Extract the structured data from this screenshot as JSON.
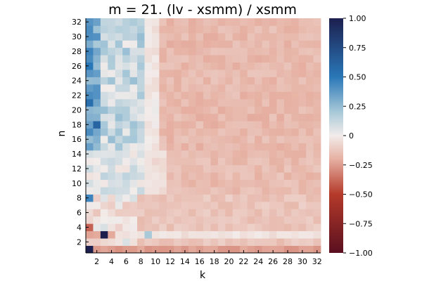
{
  "chart_data": {
    "type": "heatmap",
    "title": "m = 21. (lv - xsmm) / xsmm",
    "xlabel": "k",
    "ylabel": "n",
    "x_range": [
      1,
      32
    ],
    "y_range": [
      1,
      32
    ],
    "x_ticks": [
      "2",
      "4",
      "6",
      "8",
      "10",
      "12",
      "14",
      "16",
      "18",
      "20",
      "22",
      "24",
      "26",
      "28",
      "30",
      "32"
    ],
    "y_ticks": [
      "2",
      "4",
      "6",
      "8",
      "10",
      "12",
      "14",
      "16",
      "18",
      "20",
      "22",
      "24",
      "26",
      "28",
      "30",
      "32"
    ],
    "colorbar": {
      "range": [
        -1.0,
        1.0
      ],
      "ticks": [
        "1.00",
        "0.75",
        "0.50",
        "0.25",
        "0",
        "−0.25",
        "−0.50",
        "−0.75",
        "−1.00"
      ]
    },
    "colors": {
      "neg_dark": "#5a0f1f",
      "neg_mid": "#b43a2a",
      "neg_light": "#e6b0a2",
      "zero": "#f2ecea",
      "pos_light": "#a9c9d8",
      "pos_mid": "#2a77b8",
      "pos_dark": "#1c1f4e"
    },
    "notable_cells": [
      {
        "k": 1,
        "n": 1,
        "value": 1.0
      },
      {
        "k": 3,
        "n": 3,
        "value": 1.0
      },
      {
        "k": 2,
        "n": 18,
        "value": 0.6
      },
      {
        "k": 1,
        "n": 21,
        "value": 0.55
      },
      {
        "k": 1,
        "n": 26,
        "value": 0.5
      },
      {
        "k": 1,
        "n": 28,
        "value": 0.45
      },
      {
        "k": 1,
        "n": 8,
        "value": 0.45
      },
      {
        "k": 1,
        "n": 4,
        "value": -0.4
      },
      {
        "k": 9,
        "n": 3,
        "value": 0.2
      }
    ]
  }
}
